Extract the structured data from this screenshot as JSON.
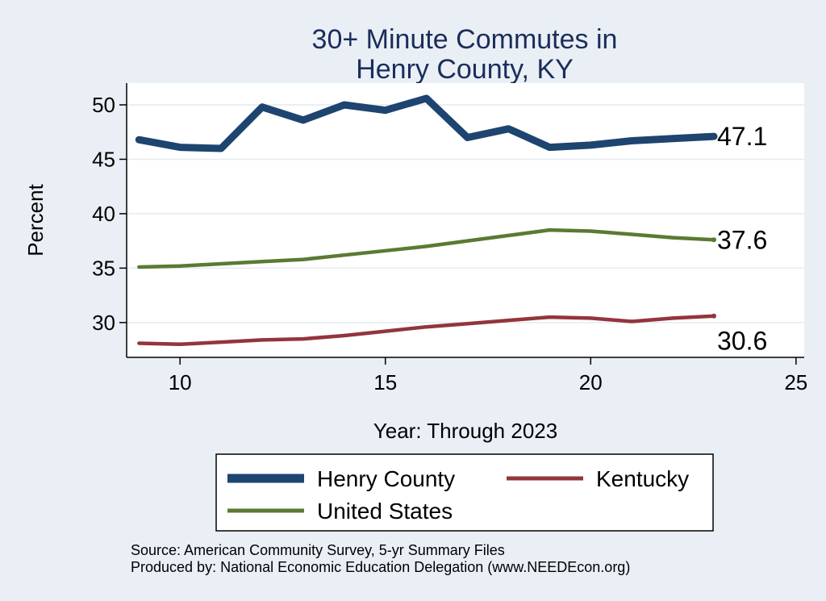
{
  "chart_data": {
    "type": "line",
    "title_lines": [
      "30+ Minute Commutes in",
      "Henry County, KY"
    ],
    "xlabel": "Year: Through 2023",
    "ylabel": "Percent",
    "xlim": [
      8.7,
      25.2
    ],
    "ylim": [
      26.8,
      52.0
    ],
    "x_ticks": [
      10,
      15,
      20,
      25
    ],
    "y_ticks": [
      30,
      35,
      40,
      45,
      50
    ],
    "grid": true,
    "legend_position": "bottom",
    "x": [
      9,
      10,
      11,
      12,
      13,
      14,
      15,
      16,
      17,
      18,
      19,
      20,
      21,
      22,
      23
    ],
    "series": [
      {
        "name": "Henry County",
        "color": "#1e4470",
        "width": "thick",
        "values": [
          46.8,
          46.1,
          46.0,
          49.8,
          48.6,
          50.0,
          49.5,
          50.6,
          47.0,
          47.8,
          46.1,
          46.3,
          46.7,
          46.9,
          47.1
        ],
        "end_label": "47.1"
      },
      {
        "name": "United States",
        "color": "#5a7a32",
        "width": "medium",
        "values": [
          35.1,
          35.2,
          35.4,
          35.6,
          35.8,
          36.2,
          36.6,
          37.0,
          37.5,
          38.0,
          38.5,
          38.4,
          38.1,
          37.8,
          37.6
        ],
        "end_label": "37.6"
      },
      {
        "name": "Kentucky",
        "color": "#93353b",
        "width": "medium",
        "values": [
          28.1,
          28.0,
          28.2,
          28.4,
          28.5,
          28.8,
          29.2,
          29.6,
          29.9,
          30.2,
          30.5,
          30.4,
          30.1,
          30.4,
          30.6
        ],
        "end_label": "30.6"
      }
    ],
    "legend": [
      {
        "name": "Henry County",
        "color": "#1e4470"
      },
      {
        "name": "Kentucky",
        "color": "#93353b"
      },
      {
        "name": "United States",
        "color": "#5a7a32"
      }
    ],
    "source_lines": [
      "Source: American Community Survey, 5-yr Summary Files",
      "Produced by: National Economic Education Delegation (www.NEEDEcon.org)"
    ]
  }
}
